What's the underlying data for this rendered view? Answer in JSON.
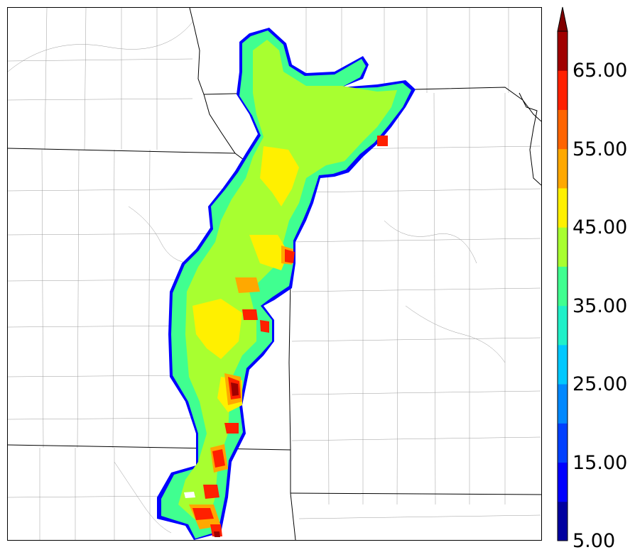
{
  "map": {
    "projection": "regional radar composite reflectivity",
    "county_lines": true,
    "state_lines": true
  },
  "colorbar": {
    "min": 5,
    "max": 70,
    "step": 5,
    "extend": "max",
    "colors": [
      "#0000a0",
      "#0000ff",
      "#0040ff",
      "#0088ff",
      "#00c8ff",
      "#20f0c8",
      "#40ff90",
      "#a8ff30",
      "#fff000",
      "#ffa800",
      "#ff6400",
      "#ff2000",
      "#a00000"
    ],
    "extend_color": "#800000",
    "tick_labels": [
      "5.00",
      "15.00",
      "25.00",
      "35.00",
      "45.00",
      "55.00",
      "65.00"
    ]
  }
}
